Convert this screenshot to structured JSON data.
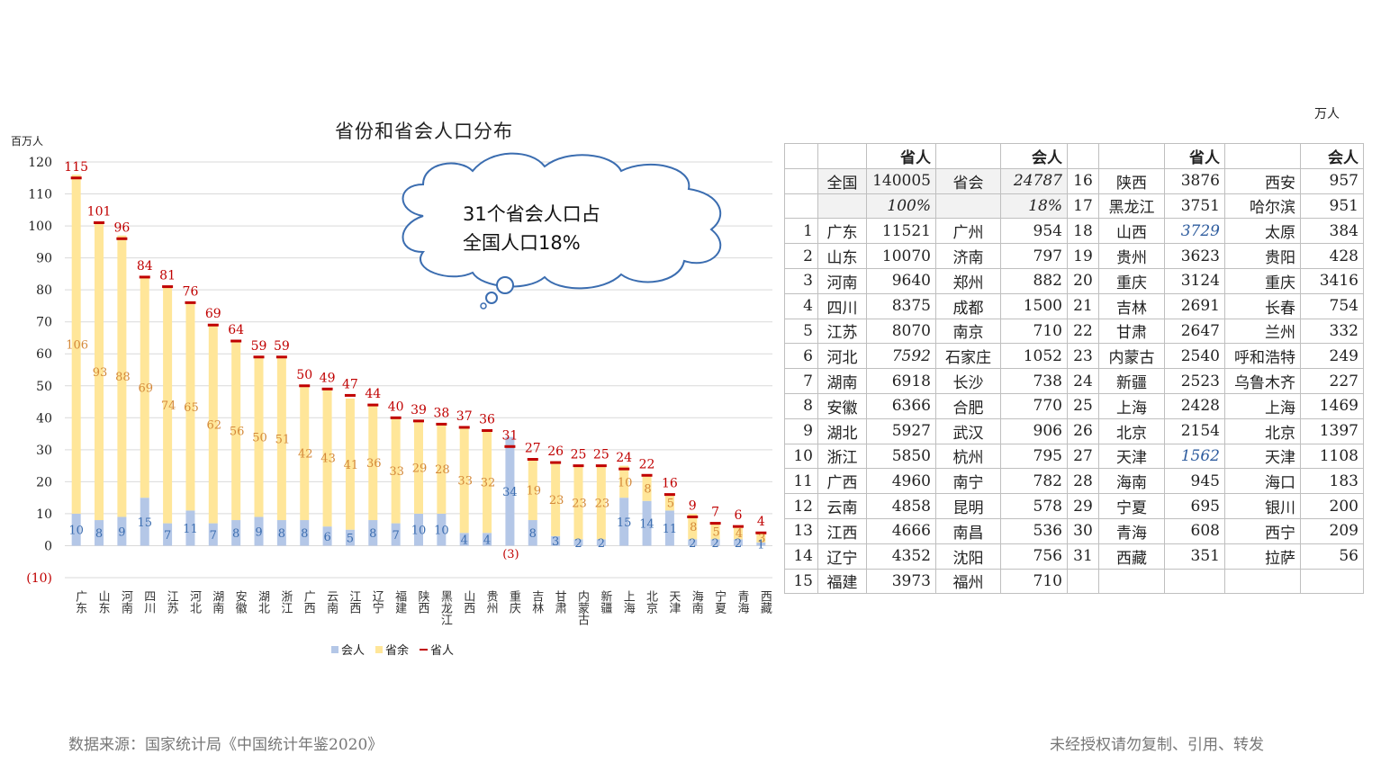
{
  "header": {
    "unit": "万人"
  },
  "chart_data": {
    "type": "bar",
    "title": "省份和省会人口分布",
    "ylabel": "百万人",
    "ylim": [
      -10,
      120
    ],
    "yticks": [
      "(10)",
      "0",
      "10",
      "20",
      "30",
      "40",
      "50",
      "60",
      "70",
      "80",
      "90",
      "100",
      "110",
      "120"
    ],
    "categories": [
      "广东",
      "山东",
      "河南",
      "四川",
      "江苏",
      "河北",
      "湖南",
      "安徽",
      "湖北",
      "浙江",
      "广西",
      "云南",
      "江西",
      "辽宁",
      "福建",
      "陕西",
      "黑龙江",
      "山西",
      "贵州",
      "重庆",
      "吉林",
      "甘肃",
      "内蒙古",
      "新疆",
      "上海",
      "北京",
      "天津",
      "海南",
      "宁夏",
      "青海",
      "西藏"
    ],
    "series": [
      {
        "name": "会人",
        "color": "#b4c7e7",
        "values": [
          10,
          8,
          9,
          15,
          7,
          11,
          7,
          8,
          9,
          8,
          8,
          6,
          5,
          8,
          7,
          10,
          10,
          4,
          4,
          34,
          8,
          3,
          2,
          2,
          15,
          14,
          11,
          2,
          2,
          2,
          1
        ]
      },
      {
        "name": "省余",
        "color": "#ffe699",
        "values": [
          106,
          93,
          88,
          69,
          74,
          65,
          62,
          56,
          50,
          51,
          42,
          43,
          41,
          36,
          33,
          29,
          28,
          33,
          32,
          -3,
          19,
          23,
          23,
          23,
          10,
          8,
          5,
          8,
          5,
          4,
          3
        ]
      },
      {
        "name": "省人",
        "color": "#c00000",
        "values": [
          115,
          101,
          96,
          84,
          81,
          76,
          69,
          64,
          59,
          59,
          50,
          49,
          47,
          44,
          40,
          39,
          38,
          37,
          36,
          31,
          27,
          26,
          25,
          25,
          24,
          22,
          16,
          9,
          7,
          6,
          4
        ]
      }
    ],
    "series_labels": {
      "会人": [
        "10",
        "8",
        "9",
        "15",
        "7",
        "11",
        "7",
        "8",
        "9",
        "8",
        "8",
        "6",
        "5",
        "8",
        "7",
        "10",
        "10",
        "4",
        "4",
        "34",
        "8",
        "3",
        "2",
        "2",
        "15",
        "14",
        "11",
        "2",
        "2",
        "2",
        "1"
      ],
      "省余": [
        "106",
        "93",
        "88",
        "69",
        "74",
        "65",
        "62",
        "56",
        "50",
        "51",
        "42",
        "43",
        "41",
        "36",
        "33",
        "29",
        "28",
        "33",
        "32",
        "(3)",
        "19",
        "23",
        "23",
        "23",
        "10",
        "8",
        "5",
        "8",
        "5",
        "4",
        "3"
      ],
      "省人": [
        "115",
        "101",
        "96",
        "84",
        "81",
        "76",
        "69",
        "64",
        "59",
        "59",
        "50",
        "49",
        "47",
        "44",
        "40",
        "39",
        "38",
        "37",
        "36",
        "31",
        "27",
        "26",
        "25",
        "25",
        "24",
        "22",
        "16",
        "9",
        "7",
        "6",
        "4"
      ]
    },
    "legend": {
      "position": "bottom",
      "items": [
        "会人",
        "省余",
        "省人"
      ]
    },
    "grid": true,
    "annotation": {
      "line1": "31个省会人口占",
      "line2": "全国人口18%"
    }
  },
  "table": {
    "header": {
      "province_pop": "省人",
      "capital_pop": "会人"
    },
    "national": {
      "label": "全国",
      "population": "140005",
      "capital_label": "省会",
      "capital_population": "24787",
      "pop_share": "100%",
      "capital_share": "18%"
    },
    "left_rows": [
      {
        "rank": "1",
        "province": "广东",
        "pop": "11521",
        "capital": "广州",
        "cap_pop": "954"
      },
      {
        "rank": "2",
        "province": "山东",
        "pop": "10070",
        "capital": "济南",
        "cap_pop": "797"
      },
      {
        "rank": "3",
        "province": "河南",
        "pop": "9640",
        "capital": "郑州",
        "cap_pop": "882"
      },
      {
        "rank": "4",
        "province": "四川",
        "pop": "8375",
        "capital": "成都",
        "cap_pop": "1500"
      },
      {
        "rank": "5",
        "province": "江苏",
        "pop": "8070",
        "capital": "南京",
        "cap_pop": "710"
      },
      {
        "rank": "6",
        "province": "河北",
        "pop": "7592",
        "capital": "石家庄",
        "cap_pop": "1052",
        "pop_italic": true
      },
      {
        "rank": "7",
        "province": "湖南",
        "pop": "6918",
        "capital": "长沙",
        "cap_pop": "738"
      },
      {
        "rank": "8",
        "province": "安徽",
        "pop": "6366",
        "capital": "合肥",
        "cap_pop": "770"
      },
      {
        "rank": "9",
        "province": "湖北",
        "pop": "5927",
        "capital": "武汉",
        "cap_pop": "906"
      },
      {
        "rank": "10",
        "province": "浙江",
        "pop": "5850",
        "capital": "杭州",
        "cap_pop": "795"
      },
      {
        "rank": "11",
        "province": "广西",
        "pop": "4960",
        "capital": "南宁",
        "cap_pop": "782"
      },
      {
        "rank": "12",
        "province": "云南",
        "pop": "4858",
        "capital": "昆明",
        "cap_pop": "578"
      },
      {
        "rank": "13",
        "province": "江西",
        "pop": "4666",
        "capital": "南昌",
        "cap_pop": "536"
      },
      {
        "rank": "14",
        "province": "辽宁",
        "pop": "4352",
        "capital": "沈阳",
        "cap_pop": "756"
      },
      {
        "rank": "15",
        "province": "福建",
        "pop": "3973",
        "capital": "福州",
        "cap_pop": "710"
      }
    ],
    "right_rows": [
      {
        "rank": "16",
        "province": "陕西",
        "pop": "3876",
        "capital": "西安",
        "cap_pop": "957"
      },
      {
        "rank": "17",
        "province": "黑龙江",
        "pop": "3751",
        "capital": "哈尔滨",
        "cap_pop": "951"
      },
      {
        "rank": "18",
        "province": "山西",
        "pop": "3729",
        "capital": "太原",
        "cap_pop": "384",
        "pop_blue": true
      },
      {
        "rank": "19",
        "province": "贵州",
        "pop": "3623",
        "capital": "贵阳",
        "cap_pop": "428"
      },
      {
        "rank": "20",
        "province": "重庆",
        "pop": "3124",
        "capital": "重庆",
        "cap_pop": "3416"
      },
      {
        "rank": "21",
        "province": "吉林",
        "pop": "2691",
        "capital": "长春",
        "cap_pop": "754"
      },
      {
        "rank": "22",
        "province": "甘肃",
        "pop": "2647",
        "capital": "兰州",
        "cap_pop": "332"
      },
      {
        "rank": "23",
        "province": "内蒙古",
        "pop": "2540",
        "capital": "呼和浩特",
        "cap_pop": "249"
      },
      {
        "rank": "24",
        "province": "新疆",
        "pop": "2523",
        "capital": "乌鲁木齐",
        "cap_pop": "227"
      },
      {
        "rank": "25",
        "province": "上海",
        "pop": "2428",
        "capital": "上海",
        "cap_pop": "1469"
      },
      {
        "rank": "26",
        "province": "北京",
        "pop": "2154",
        "capital": "北京",
        "cap_pop": "1397"
      },
      {
        "rank": "27",
        "province": "天津",
        "pop": "1562",
        "capital": "天津",
        "cap_pop": "1108",
        "pop_blue": true
      },
      {
        "rank": "28",
        "province": "海南",
        "pop": "945",
        "capital": "海口",
        "cap_pop": "183"
      },
      {
        "rank": "29",
        "province": "宁夏",
        "pop": "695",
        "capital": "银川",
        "cap_pop": "200"
      },
      {
        "rank": "30",
        "province": "青海",
        "pop": "608",
        "capital": "西宁",
        "cap_pop": "209"
      },
      {
        "rank": "31",
        "province": "西藏",
        "pop": "351",
        "capital": "拉萨",
        "cap_pop": "56"
      }
    ]
  },
  "footer": {
    "source": "数据来源：国家统计局《中国统计年鉴2020》",
    "copyright": "未经授权请勿复制、引用、转发"
  }
}
